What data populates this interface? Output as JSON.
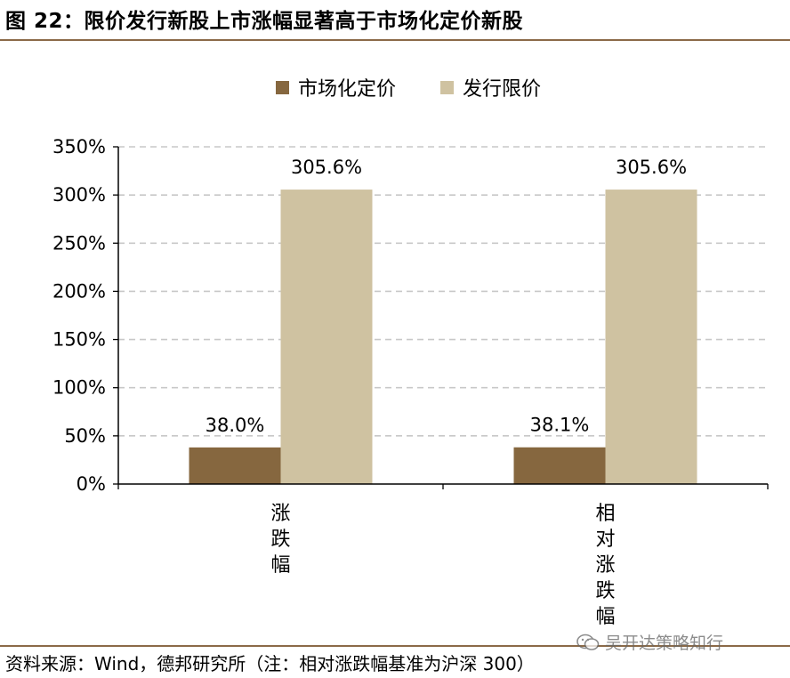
{
  "figure": {
    "title": "图 22：限价发行新股上市涨幅显著高于市场化定价新股",
    "source": "资料来源：Wind，德邦研究所（注：相对涨跌幅基准为沪深 300）",
    "watermark": "吴开达策略知行",
    "accent_color": "#8b6a48"
  },
  "chart_data": {
    "type": "bar",
    "title": "",
    "xlabel": "",
    "ylabel": "",
    "categories": [
      "涨跌幅",
      "相对涨跌幅"
    ],
    "series": [
      {
        "name": "市场化定价",
        "values": [
          38.0,
          38.1
        ],
        "color": "#86673f"
      },
      {
        "name": "发行限价",
        "values": [
          305.6,
          305.6
        ],
        "color": "#cfc2a1"
      }
    ],
    "data_labels": [
      [
        "38.0%",
        "38.1%"
      ],
      [
        "305.6%",
        "305.6%"
      ]
    ],
    "ylim": [
      0,
      350
    ],
    "yticks": [
      0,
      50,
      100,
      150,
      200,
      250,
      300,
      350
    ],
    "ytick_labels": [
      "0%",
      "50%",
      "100%",
      "150%",
      "200%",
      "250%",
      "300%",
      "350%"
    ],
    "grid": true,
    "legend_position": "top-center"
  }
}
